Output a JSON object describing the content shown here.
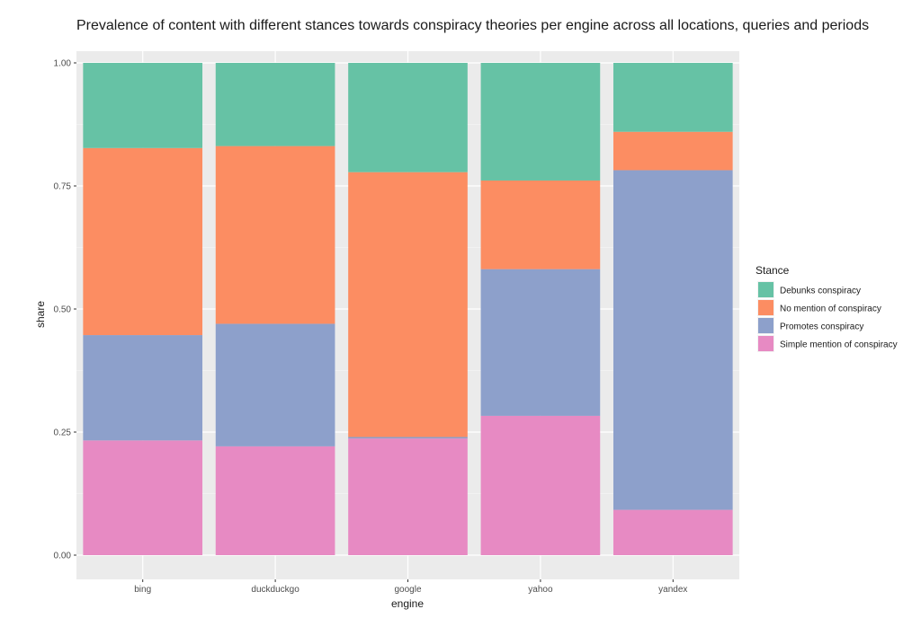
{
  "chart_data": {
    "type": "bar",
    "stacked": true,
    "title": "Prevalence of content with different stances towards conspiracy theories per engine across all locations, queries and periods",
    "xlabel": "engine",
    "ylabel": "share",
    "ylim": [
      0,
      1
    ],
    "yticks": [
      "0.00",
      "0.25",
      "0.50",
      "0.75",
      "1.00"
    ],
    "categories": [
      "bing",
      "duckduckgo",
      "google",
      "yahoo",
      "yandex"
    ],
    "grid": true,
    "legend_title": "Stance",
    "legend_position": "right",
    "series": [
      {
        "name": "Simple mention of conspiracy",
        "color": "#E78AC3",
        "values": [
          0.233,
          0.221,
          0.237,
          0.283,
          0.092
        ]
      },
      {
        "name": "Promotes conspiracy",
        "color": "#8DA0CB",
        "values": [
          0.214,
          0.249,
          0.003,
          0.298,
          0.69
        ]
      },
      {
        "name": "No mention of conspiracy",
        "color": "#FC8D62",
        "values": [
          0.38,
          0.361,
          0.538,
          0.18,
          0.078
        ]
      },
      {
        "name": "Debunks conspiracy",
        "color": "#66C2A5",
        "values": [
          0.173,
          0.169,
          0.222,
          0.239,
          0.14
        ]
      }
    ],
    "legend_order": [
      "Debunks conspiracy",
      "No mention of conspiracy",
      "Promotes conspiracy",
      "Simple mention of conspiracy"
    ]
  }
}
